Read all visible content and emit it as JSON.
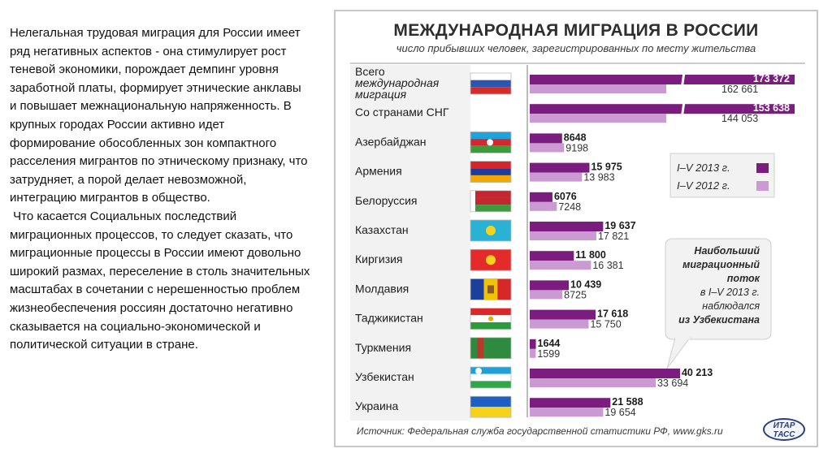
{
  "left_text": {
    "paragraph1": "Нелегальная трудовая миграция для России имеет ряд негативных аспектов - она стимулирует рост теневой экономики, порождает демпинг уровня заработной платы, формирует этнические анклавы и повышает межнациональную напряженность. В крупных городах России активно идет формирование обособленных зон компактного расселения мигрантов по этническому признаку, что затрудняет, а порой делает невозможной, интеграцию мигрантов в общество.",
    "paragraph2": " Что касается Социальных последствий миграционных процессов, то следует сказать, что миграционные процессы в России имеют довольно широкий размах, переселение в столь значительных масштабах в сочетании с нерешенностью проблем жизнеобеспечения россиян достаточно негативно сказывается на социально-экономической и политической ситуации в стране."
  },
  "chart_data": {
    "type": "bar",
    "orientation": "horizontal",
    "title": "МЕЖДУНАРОДНАЯ МИГРАЦИЯ В РОССИИ",
    "subtitle": "число прибывших человек, зарегистрированных по месту жительства",
    "categories": [
      "Всего международная миграция",
      "Со странами СНГ",
      "Азербайджан",
      "Армения",
      "Белоруссия",
      "Казахстан",
      "Киргизия",
      "Молдавия",
      "Таджикистан",
      "Туркмения",
      "Узбекистан",
      "Украина"
    ],
    "category_lines": [
      [
        "Всего",
        "международная",
        "миграция"
      ],
      [
        "Со странами СНГ"
      ],
      [
        "Азербайджан"
      ],
      [
        "Армения"
      ],
      [
        "Белоруссия"
      ],
      [
        "Казахстан"
      ],
      [
        "Киргизия"
      ],
      [
        "Молдавия"
      ],
      [
        "Таджикистан"
      ],
      [
        "Туркмения"
      ],
      [
        "Узбекистан"
      ],
      [
        "Украина"
      ]
    ],
    "series": [
      {
        "name": "I–V 2013 г.",
        "color": "#7b1c7f",
        "values": [
          173372,
          153638,
          8648,
          15975,
          6076,
          19637,
          11800,
          10439,
          17618,
          1644,
          40213,
          21588
        ]
      },
      {
        "name": "I–V 2012 г.",
        "color": "#cc9ad3",
        "values": [
          162661,
          144053,
          9198,
          13983,
          7248,
          17821,
          16381,
          8725,
          15750,
          1599,
          33694,
          19654
        ]
      }
    ],
    "value_labels": [
      [
        "173 372",
        "162 661"
      ],
      [
        "153 638",
        "144 053"
      ],
      [
        "8648",
        "9198"
      ],
      [
        "15 975",
        "13 983"
      ],
      [
        "6076",
        "7248"
      ],
      [
        "19 637",
        "17 821"
      ],
      [
        "11 800",
        "16 381"
      ],
      [
        "10 439",
        "8725"
      ],
      [
        "17 618",
        "15 750"
      ],
      [
        "1644",
        "1599"
      ],
      [
        "40 213",
        "33 694"
      ],
      [
        "21 588",
        "19 654"
      ]
    ],
    "broken_axis_rows": [
      0,
      1
    ],
    "legend": {
      "position": "right",
      "entries": [
        "I–V 2013 г.",
        "I–V 2012 г."
      ]
    },
    "callout": [
      "Наибольший",
      "миграционный",
      "поток",
      "в I–V 2013 г.",
      "наблюдался",
      "из Узбекистана"
    ],
    "flags": [
      {
        "country": "Россия",
        "stripes": [
          "#ffffff",
          "#2c55b0",
          "#d52b2b"
        ],
        "emblem": "none"
      },
      {
        "country": "СНГ",
        "stripes": [],
        "emblem": "none"
      },
      {
        "country": "Азербайджан",
        "stripes": [
          "#1fa3d8",
          "#d6262e",
          "#3a9d3a"
        ],
        "emblem": "crescent-star"
      },
      {
        "country": "Армения",
        "stripes": [
          "#d8232a",
          "#1f3c9a",
          "#f2a800"
        ],
        "emblem": "none"
      },
      {
        "country": "Белоруссия",
        "stripes": [
          "#c4272f",
          "#c4272f",
          "#3c9b3c"
        ],
        "emblem": "ornament"
      },
      {
        "country": "Казахстан",
        "stripes": [
          "#29b2d6"
        ],
        "emblem": "sun-eagle"
      },
      {
        "country": "Киргизия",
        "stripes": [
          "#e42a2a"
        ],
        "emblem": "sun"
      },
      {
        "country": "Молдавия",
        "stripes": [
          "#1b3f9a",
          "#f0c400",
          "#d62828"
        ],
        "orientation": "vertical",
        "emblem": "coat"
      },
      {
        "country": "Таджикистан",
        "stripes": [
          "#d8282a",
          "#ffffff",
          "#2e9a3b"
        ],
        "emblem": "crown"
      },
      {
        "country": "Туркмения",
        "stripes": [
          "#2e8a3e"
        ],
        "emblem": "carpet"
      },
      {
        "country": "Узбекистан",
        "stripes": [
          "#1fa0d8",
          "#ffffff",
          "#2fa64a"
        ],
        "emblem": "crescent"
      },
      {
        "country": "Украина",
        "stripes": [
          "#1f5fc2",
          "#f6d31a"
        ],
        "emblem": "none"
      }
    ]
  },
  "source": "Источник: Федеральная служба государственной статистики РФ, www.gks.ru",
  "logo_lines": [
    "ИТАР",
    "ТАСС"
  ]
}
